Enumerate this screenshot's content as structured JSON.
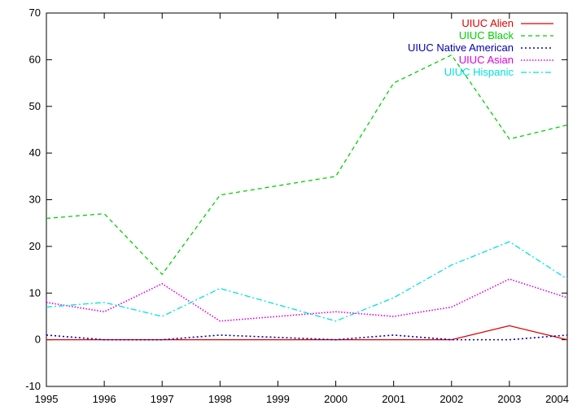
{
  "chart_data": {
    "type": "line",
    "x": [
      1995,
      1996,
      1997,
      1998,
      1999,
      2000,
      2001,
      2002,
      2003,
      2004
    ],
    "xlim": [
      1995,
      2004
    ],
    "ylim": [
      -10,
      70
    ],
    "xticks": [
      "1995",
      "1996",
      "1997",
      "1998",
      "1999",
      "2000",
      "2001",
      "2002",
      "2003",
      "2004"
    ],
    "yticks": [
      "-10",
      "0",
      "10",
      "20",
      "30",
      "40",
      "50",
      "60",
      "70"
    ],
    "legend_position": "top-right",
    "grid": false,
    "series": [
      {
        "name": "UIUC Alien",
        "color": "#e00000",
        "dash": "solid",
        "values": [
          0,
          0,
          0,
          0,
          0,
          0,
          0,
          0,
          3,
          0
        ]
      },
      {
        "name": "UIUC Black",
        "color": "#00d000",
        "dash": "dashed",
        "values": [
          26,
          27,
          14,
          31,
          33,
          35,
          55,
          61,
          43,
          46
        ]
      },
      {
        "name": "UIUC Native American",
        "color": "#0000b0",
        "dash": "dotted",
        "values": [
          1,
          0,
          0,
          1,
          0.5,
          0,
          1,
          0,
          0,
          1
        ]
      },
      {
        "name": "UIUC Asian",
        "color": "#e000e0",
        "dash": "fine-dotted",
        "values": [
          8,
          6,
          12,
          4,
          5,
          6,
          5,
          7,
          13,
          9
        ]
      },
      {
        "name": "UIUC Hispanic",
        "color": "#00e0e0",
        "dash": "dash-dot",
        "values": [
          7,
          8,
          5,
          11,
          7.5,
          4,
          9,
          16,
          21,
          13
        ]
      }
    ]
  }
}
